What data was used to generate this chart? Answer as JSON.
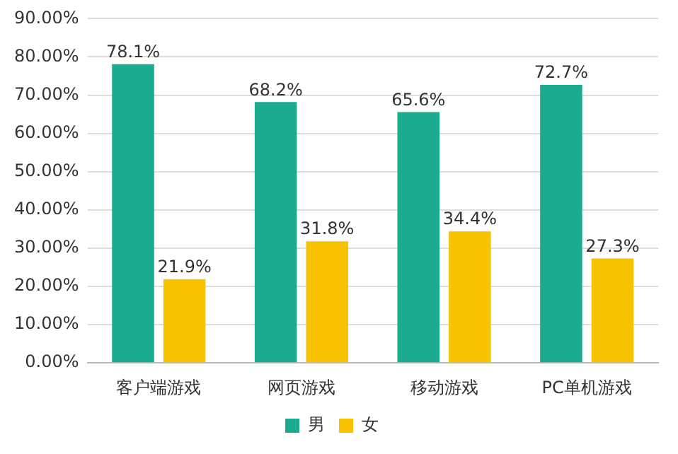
{
  "chart_data": {
    "type": "bar",
    "categories": [
      "客户端游戏",
      "网页游戏",
      "移动游戏",
      "PC单机游戏"
    ],
    "series": [
      {
        "name": "男",
        "color": "#1bab8e",
        "values": [
          78.1,
          68.2,
          65.6,
          72.7
        ],
        "value_labels": [
          "78.1%",
          "68.2%",
          "65.6%",
          "72.7%"
        ]
      },
      {
        "name": "女",
        "color": "#f7c200",
        "values": [
          21.9,
          31.8,
          34.4,
          27.3
        ],
        "value_labels": [
          "21.9%",
          "31.8%",
          "34.4%",
          "27.3%"
        ]
      }
    ],
    "ylim": [
      0,
      90
    ],
    "yticks": [
      {
        "value": 0,
        "label": "0.00%"
      },
      {
        "value": 10,
        "label": "10.00%"
      },
      {
        "value": 20,
        "label": "20.00%"
      },
      {
        "value": 30,
        "label": "30.00%"
      },
      {
        "value": 40,
        "label": "40.00%"
      },
      {
        "value": 50,
        "label": "50.00%"
      },
      {
        "value": 60,
        "label": "60.00%"
      },
      {
        "value": 70,
        "label": "70.00%"
      },
      {
        "value": 80,
        "label": "80.00%"
      },
      {
        "value": 90,
        "label": "90.00%"
      }
    ],
    "grid": "y",
    "legend": "bottom"
  }
}
